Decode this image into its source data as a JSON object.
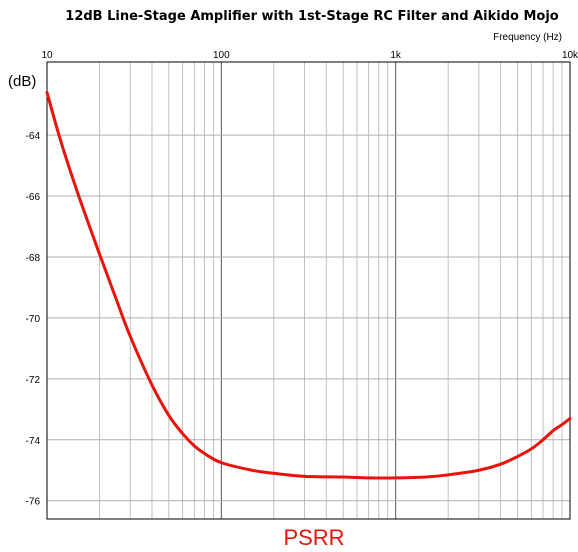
{
  "chart_data": {
    "type": "line",
    "title": "12dB Line-Stage Amplifier with 1st-Stage RC Filter and Aikido Mojo",
    "xlabel": "Frequency   (Hz)",
    "ylabel": "(dB)",
    "caption": "PSRR",
    "x_scale": "log",
    "xlim": [
      10,
      10000
    ],
    "ylim": [
      -76.6,
      -61.6
    ],
    "x_ticks": [
      {
        "value": 10,
        "label": "10"
      },
      {
        "value": 100,
        "label": "100"
      },
      {
        "value": 1000,
        "label": "1k"
      },
      {
        "value": 10000,
        "label": "10k"
      }
    ],
    "y_ticks": [
      {
        "value": -64,
        "label": "-64"
      },
      {
        "value": -66,
        "label": "-66"
      },
      {
        "value": -68,
        "label": "-68"
      },
      {
        "value": -70,
        "label": "-70"
      },
      {
        "value": -72,
        "label": "-72"
      },
      {
        "value": -74,
        "label": "-74"
      },
      {
        "value": -76,
        "label": "-76"
      }
    ],
    "grid": true,
    "colors": {
      "line": "#e8140c",
      "caption": "#e8140c",
      "grid": "#b0b0b0"
    },
    "series": [
      {
        "x": [
          10,
          12,
          15,
          20,
          25,
          30,
          40,
          50,
          60,
          70,
          80,
          100,
          150,
          200,
          300,
          500,
          700,
          1000,
          1500,
          2000,
          3000,
          4000,
          5000,
          6000,
          7000,
          8000,
          9000,
          10000
        ],
        "y": [
          -62.6,
          -64.2,
          -65.9,
          -67.9,
          -69.4,
          -70.6,
          -72.2,
          -73.2,
          -73.8,
          -74.2,
          -74.45,
          -74.75,
          -75.0,
          -75.1,
          -75.2,
          -75.22,
          -75.25,
          -75.25,
          -75.22,
          -75.15,
          -75.0,
          -74.8,
          -74.55,
          -74.3,
          -74.0,
          -73.7,
          -73.5,
          -73.3
        ]
      }
    ]
  }
}
